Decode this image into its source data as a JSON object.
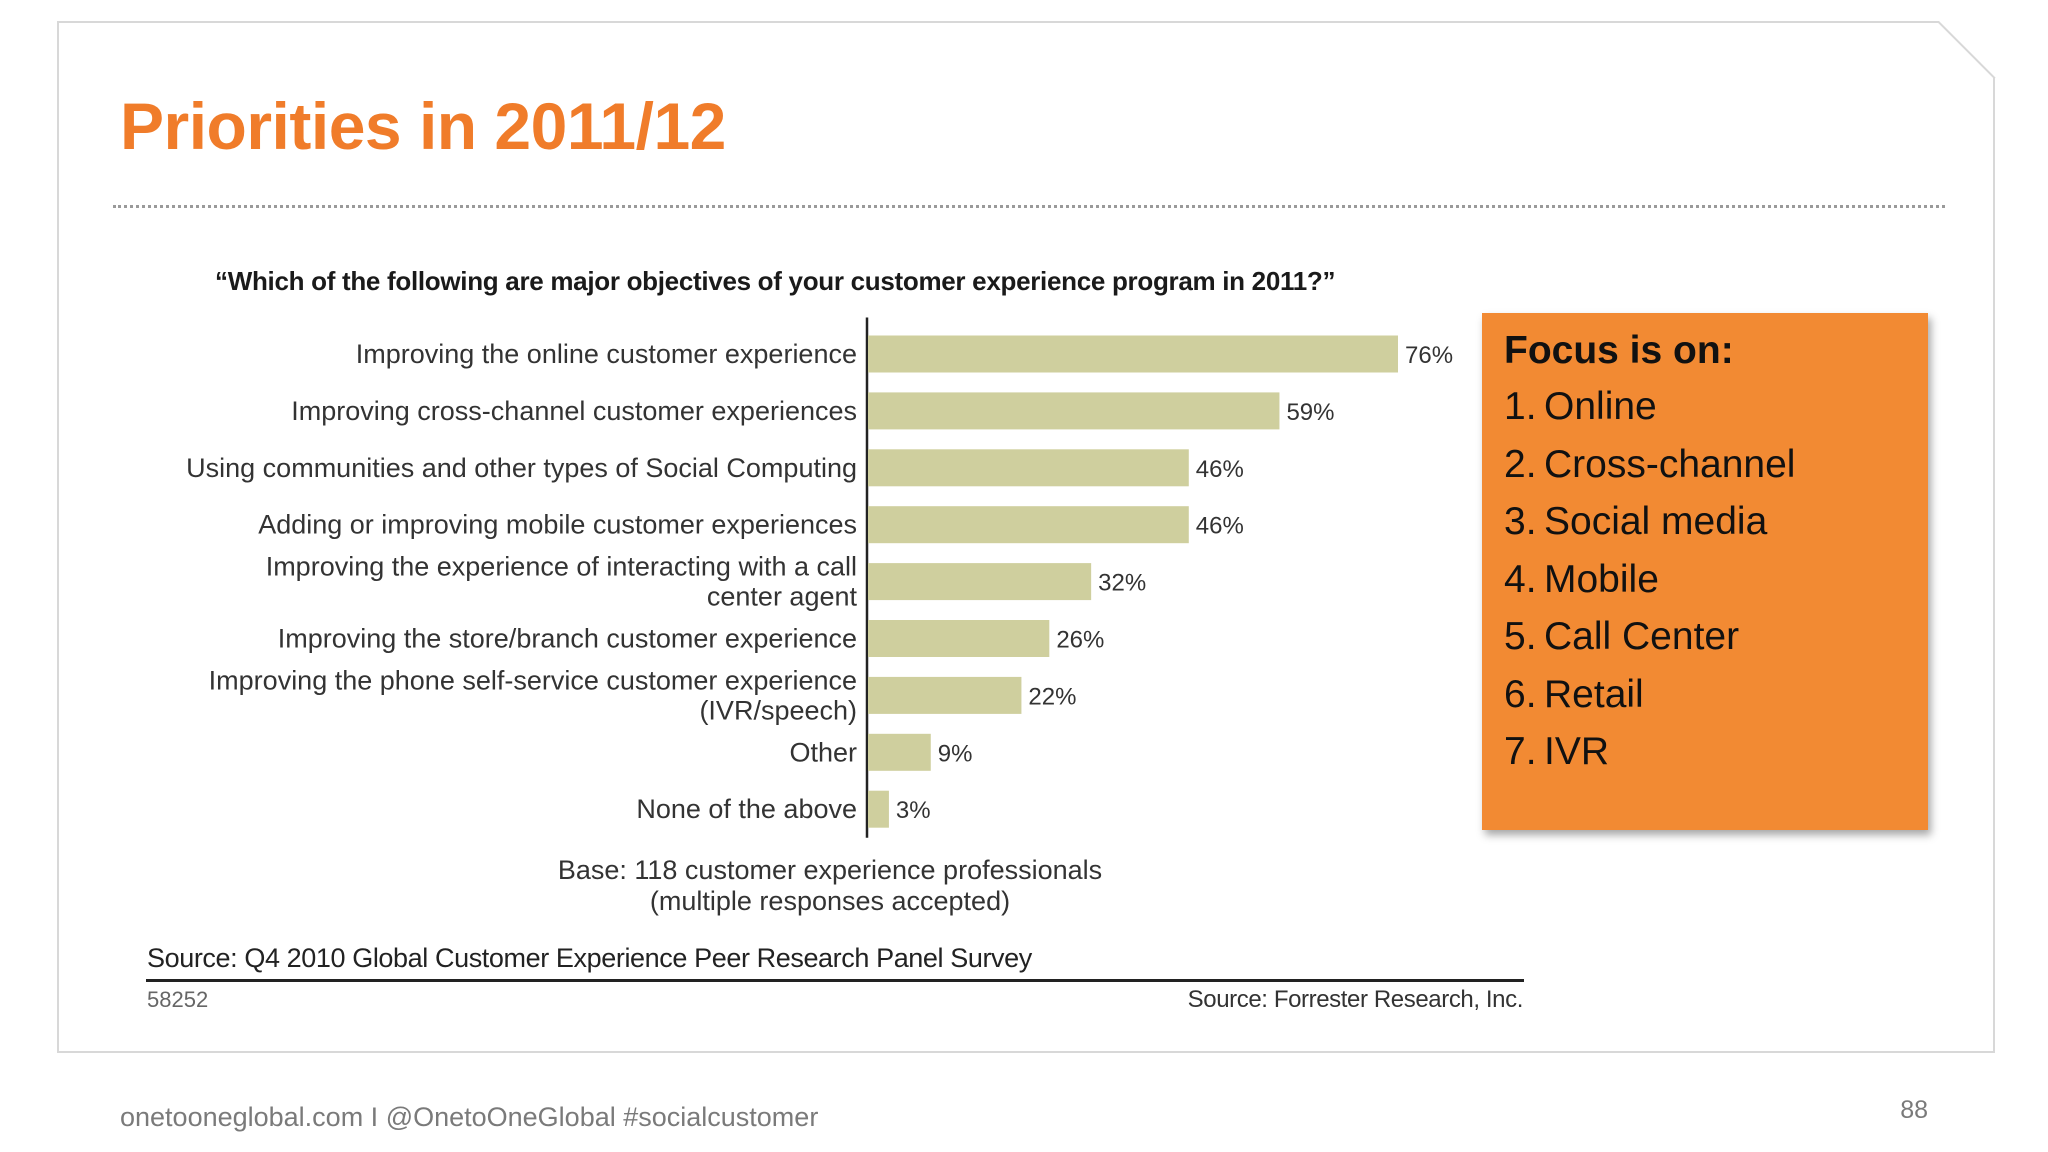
{
  "slide": {
    "title": "Priorities in 2011/12",
    "footer": "onetooneglobal.com I @OnetoOneGlobal #socialcustomer",
    "page_number": "88"
  },
  "chart_data": {
    "type": "bar",
    "orientation": "horizontal",
    "title": "“Which of the following are major objectives of your customer experience program in 2011?”",
    "categories": [
      [
        "Improving the online customer experience"
      ],
      [
        "Improving cross-channel customer experiences"
      ],
      [
        "Using communities and other types of Social Computing"
      ],
      [
        "Adding or improving mobile customer experiences"
      ],
      [
        "Improving the experience of interacting with a call",
        "center agent"
      ],
      [
        "Improving the store/branch customer experience"
      ],
      [
        "Improving the phone self-service customer experience",
        "(IVR/speech)"
      ],
      [
        "Other"
      ],
      [
        "None of the above"
      ]
    ],
    "values": [
      76,
      59,
      46,
      46,
      32,
      26,
      22,
      9,
      3
    ],
    "value_labels": [
      "76%",
      "59%",
      "46%",
      "46%",
      "32%",
      "26%",
      "22%",
      "9%",
      "3%"
    ],
    "unit": "%",
    "xlim": [
      0,
      100
    ],
    "grid": false,
    "legend": "none",
    "bar_color": "#cfcf9e",
    "base_note": [
      "Base: 118 customer experience professionals",
      "(multiple responses accepted)"
    ],
    "source": "Source: Q4 2010 Global Customer Experience Peer Research Panel Survey",
    "figure_id": "58252",
    "credit": "Source: Forrester Research, Inc."
  },
  "focus_box": {
    "title": "Focus is on:",
    "items": [
      {
        "num": "1.",
        "label": "Online"
      },
      {
        "num": "2.",
        "label": "Cross-channel"
      },
      {
        "num": "3.",
        "label": "Social media"
      },
      {
        "num": "4.",
        "label": "Mobile"
      },
      {
        "num": "5.",
        "label": "Call Center"
      },
      {
        "num": "6.",
        "label": "Retail"
      },
      {
        "num": "7.",
        "label": "IVR"
      }
    ],
    "background": "#f28a33"
  },
  "colors": {
    "accent": "#f07c2a",
    "bar": "#cfcf9e"
  }
}
